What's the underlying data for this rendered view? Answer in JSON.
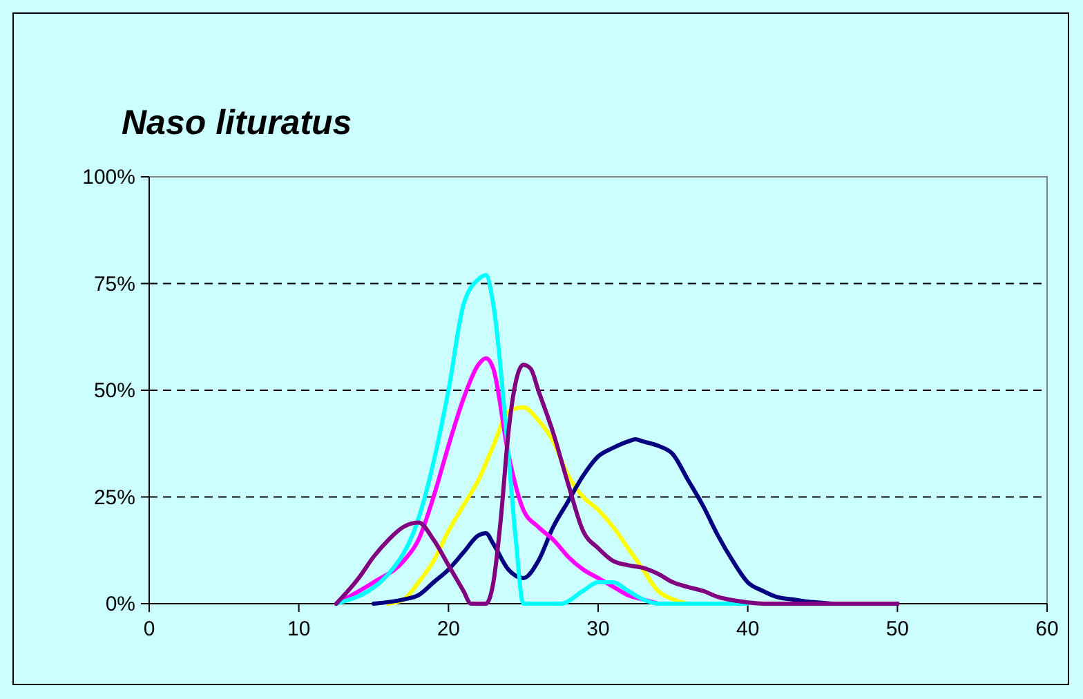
{
  "chart_data": {
    "type": "line",
    "title": "Naso lituratus",
    "xlim": [
      0,
      60
    ],
    "xticks": [
      0,
      10,
      20,
      30,
      40,
      50,
      60
    ],
    "ylim": [
      0,
      100
    ],
    "yticks": [
      {
        "value": 0,
        "label": "0%"
      },
      {
        "value": 25,
        "label": "25%"
      },
      {
        "value": 50,
        "label": "50%"
      },
      {
        "value": 75,
        "label": "75%"
      },
      {
        "value": 100,
        "label": "100%"
      }
    ],
    "grid": "y",
    "marker": "none",
    "line_style": "solid",
    "series": [
      {
        "color": "#ffff00",
        "x": [
          16,
          17,
          18,
          19,
          20,
          21,
          22,
          23,
          24,
          25,
          26,
          27,
          28,
          29,
          30,
          31,
          32,
          33,
          34,
          35,
          36
        ],
        "values": [
          0,
          1,
          5,
          10,
          17,
          23,
          29,
          37,
          45,
          46,
          43,
          38,
          30,
          25,
          22,
          18,
          13,
          8,
          3,
          1,
          0
        ]
      },
      {
        "color": "#000080",
        "x": [
          15,
          17,
          18,
          19,
          20,
          21,
          22,
          22.5,
          23,
          24,
          25,
          26,
          27,
          28,
          29,
          30,
          31,
          32,
          32.5,
          33,
          34,
          35,
          36,
          37,
          38,
          39,
          40,
          41,
          42,
          43,
          44,
          45,
          46,
          50
        ],
        "values": [
          0,
          1,
          2,
          5,
          8,
          12,
          16,
          16.5,
          14,
          8,
          6,
          10,
          18,
          24,
          30,
          34.5,
          36.5,
          38,
          38.5,
          38,
          37,
          35,
          29,
          23,
          16,
          10,
          5,
          3,
          1.5,
          1,
          0.5,
          0.2,
          0,
          0
        ]
      },
      {
        "color": "#ff00ff",
        "x": [
          12.5,
          15,
          17,
          18,
          19,
          20,
          21,
          22,
          22.5,
          23,
          24,
          25,
          26,
          27,
          28,
          29,
          30,
          31,
          32,
          33,
          34
        ],
        "values": [
          0,
          5,
          10,
          15,
          25,
          37,
          48,
          56,
          57.5,
          55,
          35,
          22,
          18,
          15,
          11,
          8,
          6,
          4,
          2,
          1,
          0
        ]
      },
      {
        "color": "#00ffff",
        "x": [
          12.5,
          16,
          18,
          20,
          21,
          22,
          22.5,
          23,
          24,
          24.5,
          25,
          26,
          27,
          27.5,
          29,
          30,
          31,
          32,
          33,
          34,
          40
        ],
        "values": [
          0,
          7,
          20,
          50,
          70,
          76,
          77,
          70,
          35,
          15,
          0,
          0,
          0,
          0,
          3,
          5,
          5,
          3,
          1,
          0,
          0
        ]
      },
      {
        "color": "#800080",
        "x": [
          12.5,
          14,
          15,
          16,
          17,
          18,
          19,
          20,
          21,
          21.5,
          22.5,
          23,
          23.5,
          24,
          24.5,
          25,
          25.5,
          26,
          27,
          28,
          29,
          30,
          31,
          32,
          33,
          34,
          35,
          36,
          37,
          38,
          39,
          40,
          41,
          50
        ],
        "values": [
          0,
          6,
          11,
          15,
          18,
          19,
          15,
          9,
          3,
          0,
          0,
          5,
          20,
          40,
          52,
          56,
          55,
          50,
          40,
          28,
          17,
          13,
          10,
          9,
          8.4,
          7,
          5,
          3.9,
          3,
          1.6,
          0.8,
          0.3,
          0,
          0
        ]
      }
    ]
  }
}
